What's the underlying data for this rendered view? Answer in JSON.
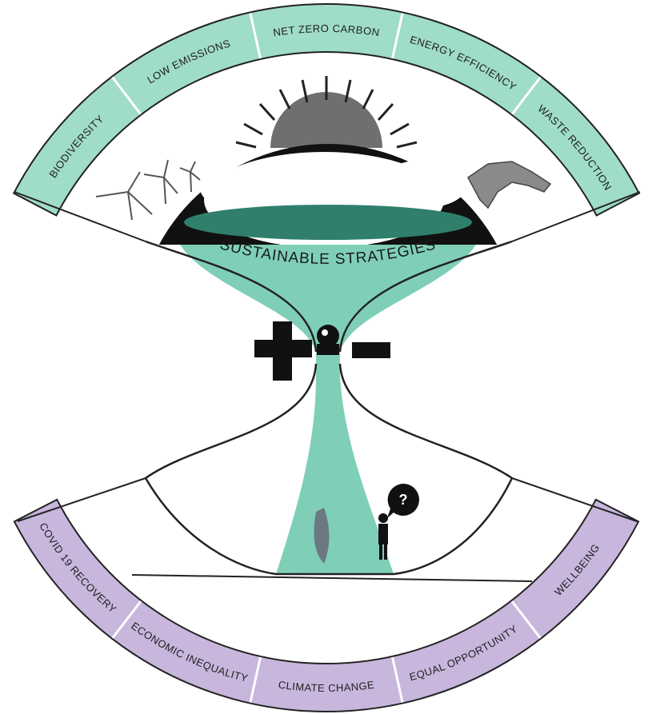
{
  "top_arc": {
    "labels": [
      "BIODIVERSITY",
      "LOW EMISSIONS",
      "NET ZERO CARBON",
      "ENERGY EFFICIENCY",
      "WASTE REDUCTION"
    ]
  },
  "bottom_arc": {
    "labels": [
      "COVID 19 RECOVERY",
      "ECONOMIC INEQUALITY",
      "CLIMATE CHANGE",
      "EQUAL OPPORTUNITY",
      "WELLBEING"
    ]
  },
  "center": {
    "title": "SUSTAINABLE STRATEGIES"
  },
  "speech_bubble": {
    "text": "?"
  }
}
